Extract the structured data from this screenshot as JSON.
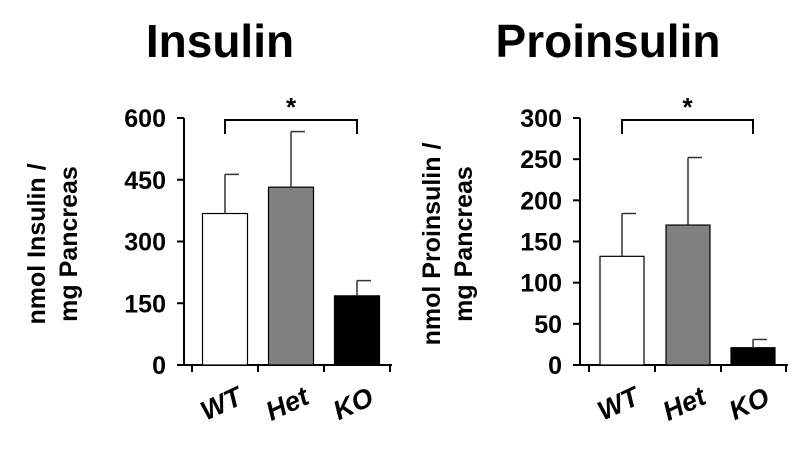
{
  "chart_data": [
    {
      "type": "bar",
      "title": "Insulin",
      "ylabel_line1": "nmol Insulin /",
      "ylabel_line2": "mg Pancreas",
      "categories": [
        "WT",
        "Het",
        "KO"
      ],
      "values": [
        368,
        432,
        168
      ],
      "errors": [
        95,
        135,
        37
      ],
      "bar_colors": [
        "#ffffff",
        "#808080",
        "#000000"
      ],
      "ylim": [
        0,
        600
      ],
      "yticks": [
        0,
        150,
        300,
        450,
        600
      ],
      "significance": {
        "from": "WT",
        "to": "KO",
        "label": "*"
      },
      "grid": false,
      "legend": "none"
    },
    {
      "type": "bar",
      "title": "Proinsulin",
      "ylabel_line1": "nmol Proinsulin /",
      "ylabel_line2": "mg Pancreas",
      "categories": [
        "WT",
        "Het",
        "KO"
      ],
      "values": [
        132,
        170,
        21
      ],
      "errors": [
        52,
        82,
        10
      ],
      "bar_colors": [
        "#ffffff",
        "#808080",
        "#000000"
      ],
      "ylim": [
        0,
        300
      ],
      "yticks": [
        0,
        50,
        100,
        150,
        200,
        250,
        300
      ],
      "significance": {
        "from": "WT",
        "to": "KO",
        "label": "*"
      },
      "grid": false,
      "legend": "none"
    }
  ]
}
